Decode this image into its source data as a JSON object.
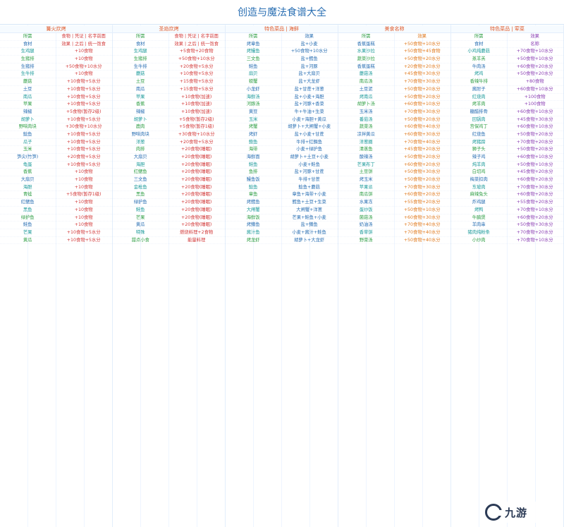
{
  "title": "创造与魔法食谱大全",
  "columns": [
    {
      "header": "篝火炊烤",
      "color": "c-red",
      "rows": [
        [
          "所需",
          "食物 | 凭证 | 名字前面"
        ],
        [
          "食材",
          "效果 | 之后 | 统一饱食"
        ],
        [
          "生鸡腿",
          "+10食物"
        ],
        [
          "生猪排",
          "+10食物"
        ],
        [
          "生猪排",
          "+50食物+10水分"
        ],
        [
          "生牛排",
          "+10食物"
        ],
        [
          "蘑菇",
          "+10食物+5水分"
        ],
        [
          "土豆",
          "+10食物+5水分"
        ],
        [
          "南瓜",
          "+10食物+5水分"
        ],
        [
          "苹果",
          "+10食物+5水分"
        ],
        [
          "辣椒",
          "+5食物(暂存2级)"
        ],
        [
          "胡萝卜",
          "+10食物+5水分"
        ],
        [
          "野味肉块",
          "+30食物+10水分"
        ],
        [
          "鲶鱼",
          "+10食物+5水分"
        ],
        [
          "瓜子",
          "+10食物+5水分"
        ],
        [
          "玉米",
          "+10食物+5水分"
        ],
        [
          "笋尖(竹笋)",
          "+20食物+5水分"
        ],
        [
          "龟蛋",
          "+10食物+5水分"
        ],
        [
          "香蕉",
          "+10食物"
        ],
        [
          "大扇贝",
          "+10食物"
        ],
        [
          "海胆",
          "+10食物"
        ],
        [
          "青蛙",
          "+5食物(暂存1级)"
        ],
        [
          "红鳃鱼",
          "+10食物"
        ],
        [
          "黑鱼",
          "+10食物"
        ],
        [
          "绿护鱼",
          "+10食物"
        ],
        [
          "鲑鱼",
          "+10食物"
        ],
        [
          "芒果",
          "+10食物+5水分"
        ],
        [
          "黄瓜",
          "+10食物+5水分"
        ]
      ]
    },
    {
      "header": "圣焰炊烤",
      "color": "c-red",
      "rows": [
        [
          "所需",
          "食物 | 凭证 | 名字前面"
        ],
        [
          "食材",
          "效果 | 之后 | 统一饱食"
        ],
        [
          "生鸡腿",
          "+5食物+20食物"
        ],
        [
          "生猪排",
          "+50食物+10水分"
        ],
        [
          "生牛排",
          "+20食物+5水分"
        ],
        [
          "蘑菇",
          "+10食物+5水分"
        ],
        [
          "土豆",
          "+15食物+5水分"
        ],
        [
          "南瓜",
          "+15食物+5水分"
        ],
        [
          "苹果",
          "+10食物(加速)"
        ],
        [
          "香蕉",
          "+10食物(加速)"
        ],
        [
          "辣椒",
          "+10食物(加速)"
        ],
        [
          "胡萝卜",
          "+5食物(暂存2级)"
        ],
        [
          "鹿肉",
          "+5食物(暂存1级)"
        ],
        [
          "野味肉块",
          "+30食物+10水分"
        ],
        [
          "洋葱",
          "+20食物+5水分"
        ],
        [
          "肉排",
          "+20食物(睡眠)"
        ],
        [
          "大扇贝",
          "+20食物(睡眠)"
        ],
        [
          "海胆",
          "+20食物(睡眠)"
        ],
        [
          "红鳃鱼",
          "+20食物(睡眠)"
        ],
        [
          "三文鱼",
          "+20食物(睡眠)"
        ],
        [
          "金枪鱼",
          "+20食物(睡眠)"
        ],
        [
          "黑鱼",
          "+20食物(睡眠)"
        ],
        [
          "绿护鱼",
          "+20食物(睡眠)"
        ],
        [
          "鲑鱼",
          "+20食物(睡眠)"
        ],
        [
          "芒果",
          "+20食物(睡眠)"
        ],
        [
          "黄瓜",
          "+20食物(睡眠)"
        ],
        [
          "特殊",
          "燃烧料理+2食物"
        ],
        [
          "甜点小食",
          "能量料理"
        ]
      ]
    },
    {
      "header": "特色菜品 | 海鲜",
      "color": "c-blue",
      "rows": [
        [
          "所需",
          "效果"
        ],
        [
          "烤章鱼",
          "盐+小麦"
        ],
        [
          "烤鳗鱼",
          "+50食物+10水分"
        ],
        [
          "三文鱼",
          "盐+鳕鱼"
        ],
        [
          "鲑鱼",
          "盐+河豚"
        ],
        [
          "扇贝",
          "盐+大扇贝"
        ],
        [
          "螃蟹",
          "盐+大龙虾"
        ],
        [
          "小龙虾",
          "盐+甘蔗+洋葱"
        ],
        [
          "海鲜汤",
          "盐+小麦+海胆"
        ],
        [
          "河豚汤",
          "盐+河豚+香菜"
        ],
        [
          "黄豆",
          "牛+牛油+生菜"
        ],
        [
          "玉米",
          "小麦+海胆+黄瓜"
        ],
        [
          "烤蟹",
          "胡萝卜+大闸蟹+小麦"
        ],
        [
          "烤虾",
          "盐+小麦+甘蔗"
        ],
        [
          "鲍鱼",
          "牛排+红鲷鱼"
        ],
        [
          "海带",
          "小麦+绿护鱼"
        ],
        [
          "海鲜面",
          "胡萝卜+土豆+小麦"
        ],
        [
          "鲑鱼",
          "小麦+鲑鱼"
        ],
        [
          "鱼排",
          "盐+河豚+甘蔗"
        ],
        [
          "鳗鱼饭",
          "牛排+甘蔗"
        ],
        [
          "鲶鱼",
          "鲶鱼+蘑菇"
        ],
        [
          "章鱼",
          "章鱼+海带+小麦"
        ],
        [
          "烤鳕鱼",
          "鳕鱼+土豆+生菜"
        ],
        [
          "大闸蟹",
          "大闸蟹+洋葱"
        ],
        [
          "海鲜饭",
          "芒果+鲑鱼+小麦"
        ],
        [
          "烤鳟鱼",
          "盐+鳟鱼"
        ],
        [
          "酱汁鱼",
          "小麦+酱汁+鲑鱼"
        ],
        [
          "烤龙虾",
          "胡萝卜+大龙虾"
        ]
      ]
    },
    {
      "header": "美食名称",
      "color": "c-orange",
      "rows": [
        [
          "所需",
          "效果"
        ],
        [
          "香蕉蛋糕",
          "+50食物+10水分"
        ],
        [
          "水果沙拉",
          "+50食物+45食物"
        ],
        [
          "蔬菜沙拉",
          "+50食物+20水分"
        ],
        [
          "香蕉蛋糕",
          "+20食物+20水分"
        ],
        [
          "蘑菇汤",
          "+45食物+30水分"
        ],
        [
          "南瓜汤",
          "+70食物+30水分"
        ],
        [
          "土豆泥",
          "+50食物+20水分"
        ],
        [
          "烤南瓜",
          "+50食物+20水分"
        ],
        [
          "胡萝卜汤",
          "+60食物+10水分"
        ],
        [
          "玉米汤",
          "+70食物+30水分"
        ],
        [
          "番茄汤",
          "+50食物+20水分"
        ],
        [
          "蔬菜汤",
          "+60食物+40水分"
        ],
        [
          "凉拌黄瓜",
          "+60食物+30水分"
        ],
        [
          "洋葱圈",
          "+70食物+40水分"
        ],
        [
          "清蒸鱼",
          "+45食物+20水分"
        ],
        [
          "酸辣汤",
          "+50食物+20水分"
        ],
        [
          "芒果布丁",
          "+60食物+20水分"
        ],
        [
          "土豆饼",
          "+50食物+30水分"
        ],
        [
          "烤玉米",
          "+50食物+20水分"
        ],
        [
          "苹果派",
          "+70食物+30水分"
        ],
        [
          "南瓜饼",
          "+60食物+20水分"
        ],
        [
          "水果冻",
          "+55食物+20水分"
        ],
        [
          "蛋炒饭",
          "+50食物+10水分"
        ],
        [
          "菌菇汤",
          "+60食物+30水分"
        ],
        [
          "奶油汤",
          "+70食物+40水分"
        ],
        [
          "香草饼",
          "+70食物+40水分"
        ],
        [
          "野菜汤",
          "+50食物+40水分"
        ]
      ]
    },
    {
      "header": "特色菜品 | 荤菜",
      "color": "c-purple",
      "rows": [
        [
          "所需",
          "效果"
        ],
        [
          "食材",
          "名称"
        ],
        [
          "小鸡炖蘑菇",
          "+70食物+10水分"
        ],
        [
          "蒸羊羔",
          "+50食物+10水分"
        ],
        [
          "牛肉汤",
          "+60食物+20水分"
        ],
        [
          "烤鸡",
          "+50食物+20水分"
        ],
        [
          "香辣牛排",
          "+80食物"
        ],
        [
          "酱肘子",
          "+60食物+10水分"
        ],
        [
          "红烧肉",
          "+100食物"
        ],
        [
          "烤羊肉",
          "+100食物"
        ],
        [
          "糖醋排骨",
          "+60食物+10水分"
        ],
        [
          "回锅肉",
          "+45食物+30水分"
        ],
        [
          "宫保鸡丁",
          "+60食物+10水分"
        ],
        [
          "红烧鱼",
          "+50食物+20水分"
        ],
        [
          "烤猪蹄",
          "+70食物+20水分"
        ],
        [
          "狮子头",
          "+50食物+20水分"
        ],
        [
          "辣子鸡",
          "+60食物+10水分"
        ],
        [
          "炖羊肉",
          "+50食物+10水分"
        ],
        [
          "白切鸡",
          "+45食物+20水分"
        ],
        [
          "梅菜扣肉",
          "+60食物+20水分"
        ],
        [
          "东坡肉",
          "+70食物+30水分"
        ],
        [
          "麻辣兔头",
          "+60食物+20水分"
        ],
        [
          "炸鸡腿",
          "+55食物+20水分"
        ],
        [
          "烤鸭",
          "+70食物+10水分"
        ],
        [
          "牛腩煲",
          "+60食物+20水分"
        ],
        [
          "羊肉串",
          "+50食物+30水分"
        ],
        [
          "猪肉炖粉条",
          "+70食物+20水分"
        ],
        [
          "小炒肉",
          "+70食物+10水分"
        ]
      ]
    }
  ],
  "watermark": "九游"
}
